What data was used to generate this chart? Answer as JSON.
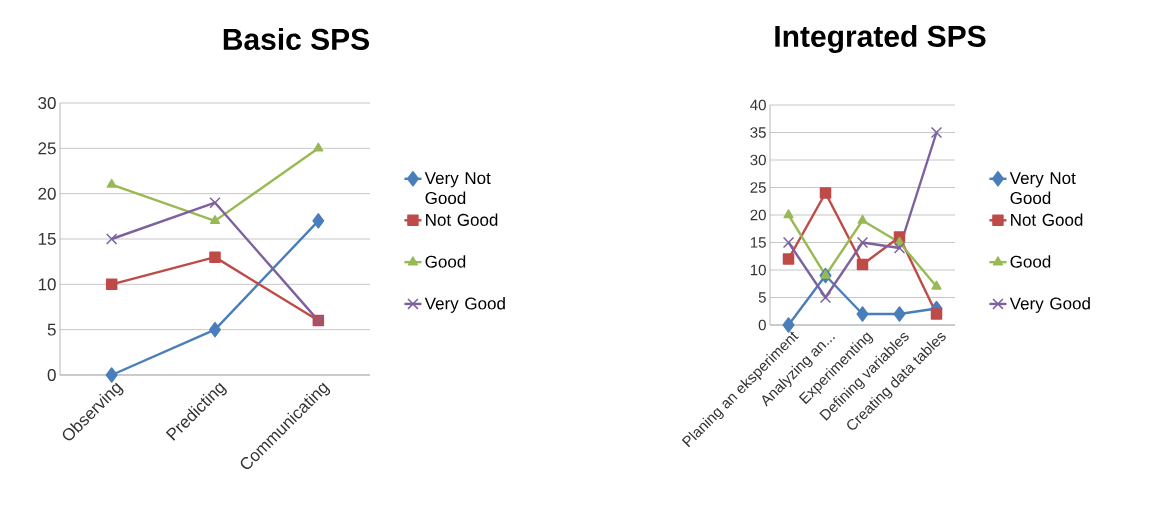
{
  "chart_data": [
    {
      "type": "line",
      "title": "Basic SPS",
      "categories": [
        "Observing",
        "Predicting",
        "Communicating"
      ],
      "ylim": [
        0,
        30
      ],
      "yticks": [
        0,
        5,
        10,
        15,
        20,
        25,
        30
      ],
      "grid": "y",
      "legend": "right",
      "series": [
        {
          "name": "Very Not Good",
          "color": "#4a7ebb",
          "marker": "diamond",
          "values": [
            0,
            5,
            17
          ]
        },
        {
          "name": "Not Good",
          "color": "#be4b48",
          "marker": "square",
          "values": [
            10,
            13,
            6
          ]
        },
        {
          "name": "Good",
          "color": "#98b954",
          "marker": "triangle",
          "values": [
            21,
            17,
            25
          ]
        },
        {
          "name": "Very Good",
          "color": "#7d60a0",
          "marker": "cross",
          "values": [
            15,
            19,
            6
          ]
        }
      ]
    },
    {
      "type": "line",
      "title": "Integrated SPS",
      "categories": [
        "Planing an eksperiment",
        "Analyzing an...",
        "Experimenting",
        "Defining variables",
        "Creating data tables"
      ],
      "ylim": [
        0,
        40
      ],
      "yticks": [
        0,
        5,
        10,
        15,
        20,
        25,
        30,
        35,
        40
      ],
      "grid": "y",
      "legend": "right",
      "series": [
        {
          "name": "Very Not Good",
          "color": "#4a7ebb",
          "marker": "diamond",
          "values": [
            0,
            9,
            2,
            2,
            3
          ]
        },
        {
          "name": "Not Good",
          "color": "#be4b48",
          "marker": "square",
          "values": [
            12,
            24,
            11,
            16,
            2
          ]
        },
        {
          "name": "Good",
          "color": "#98b954",
          "marker": "triangle",
          "values": [
            20,
            9,
            19,
            15,
            7
          ]
        },
        {
          "name": "Very Good",
          "color": "#7d60a0",
          "marker": "cross",
          "values": [
            15,
            5,
            15,
            14,
            35
          ]
        }
      ]
    }
  ]
}
